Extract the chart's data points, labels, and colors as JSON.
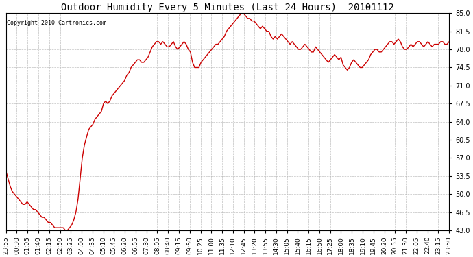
{
  "title": "Outdoor Humidity Every 5 Minutes (Last 24 Hours)  20101112",
  "copyright_text": "Copyright 2010 Cartronics.com",
  "line_color": "#cc0000",
  "background_color": "#ffffff",
  "plot_bg_color": "#ffffff",
  "grid_color": "#b0b0b0",
  "ylim": [
    43.0,
    85.0
  ],
  "yticks": [
    43.0,
    46.5,
    50.0,
    53.5,
    57.0,
    60.5,
    64.0,
    67.5,
    71.0,
    74.5,
    78.0,
    81.5,
    85.0
  ],
  "xtick_labels": [
    "23:55",
    "00:30",
    "01:05",
    "01:40",
    "02:15",
    "02:50",
    "03:25",
    "04:00",
    "04:35",
    "05:10",
    "05:45",
    "06:20",
    "06:55",
    "07:30",
    "08:05",
    "08:40",
    "09:15",
    "09:50",
    "10:25",
    "11:00",
    "11:35",
    "12:10",
    "12:45",
    "13:20",
    "13:55",
    "14:30",
    "15:05",
    "15:40",
    "16:15",
    "16:50",
    "17:25",
    "18:00",
    "18:35",
    "19:10",
    "19:45",
    "20:20",
    "20:55",
    "21:30",
    "22:05",
    "22:40",
    "23:15",
    "23:50"
  ],
  "humidity_values": [
    54.5,
    53.0,
    51.5,
    50.5,
    50.0,
    49.5,
    49.0,
    48.5,
    48.0,
    48.0,
    48.5,
    48.0,
    47.5,
    47.0,
    47.0,
    46.5,
    46.0,
    45.5,
    45.5,
    45.0,
    44.5,
    44.5,
    44.0,
    43.5,
    43.5,
    43.5,
    43.5,
    43.5,
    43.0,
    43.0,
    43.5,
    44.0,
    45.0,
    46.5,
    49.0,
    53.0,
    57.0,
    59.5,
    61.0,
    62.5,
    63.0,
    63.5,
    64.5,
    65.0,
    65.5,
    66.0,
    67.5,
    68.0,
    67.5,
    68.0,
    69.0,
    69.5,
    70.0,
    70.5,
    71.0,
    71.5,
    72.0,
    73.0,
    73.5,
    74.5,
    75.0,
    75.5,
    76.0,
    76.0,
    75.5,
    75.5,
    76.0,
    76.5,
    77.5,
    78.5,
    79.0,
    79.5,
    79.5,
    79.0,
    79.5,
    79.0,
    78.5,
    78.5,
    79.0,
    79.5,
    78.5,
    78.0,
    78.5,
    79.0,
    79.5,
    79.0,
    78.0,
    77.5,
    75.5,
    74.5,
    74.5,
    74.5,
    75.5,
    76.0,
    76.5,
    77.0,
    77.5,
    78.0,
    78.5,
    79.0,
    79.0,
    79.5,
    80.0,
    80.5,
    81.5,
    82.0,
    82.5,
    83.0,
    83.5,
    84.0,
    84.5,
    85.0,
    85.0,
    84.5,
    84.0,
    84.0,
    83.5,
    83.5,
    83.0,
    82.5,
    82.0,
    82.5,
    82.0,
    81.5,
    81.5,
    80.5,
    80.0,
    80.5,
    80.0,
    80.5,
    81.0,
    80.5,
    80.0,
    79.5,
    79.0,
    79.5,
    79.0,
    78.5,
    78.0,
    78.0,
    78.5,
    79.0,
    78.5,
    78.0,
    77.5,
    77.5,
    78.5,
    78.0,
    77.5,
    77.0,
    76.5,
    76.0,
    75.5,
    76.0,
    76.5,
    77.0,
    76.5,
    76.0,
    76.5,
    75.0,
    74.5,
    74.0,
    74.5,
    75.5,
    76.0,
    75.5,
    75.0,
    74.5,
    74.5,
    75.0,
    75.5,
    76.0,
    77.0,
    77.5,
    78.0,
    78.0,
    77.5,
    77.5,
    78.0,
    78.5,
    79.0,
    79.5,
    79.5,
    79.0,
    79.5,
    80.0,
    79.5,
    78.5,
    78.0,
    78.0,
    78.5,
    79.0,
    78.5,
    79.0,
    79.5,
    79.5,
    79.0,
    78.5,
    79.0,
    79.5,
    79.0,
    78.5,
    79.0,
    79.0,
    79.0,
    79.5,
    79.5,
    79.0,
    79.0,
    79.5
  ]
}
